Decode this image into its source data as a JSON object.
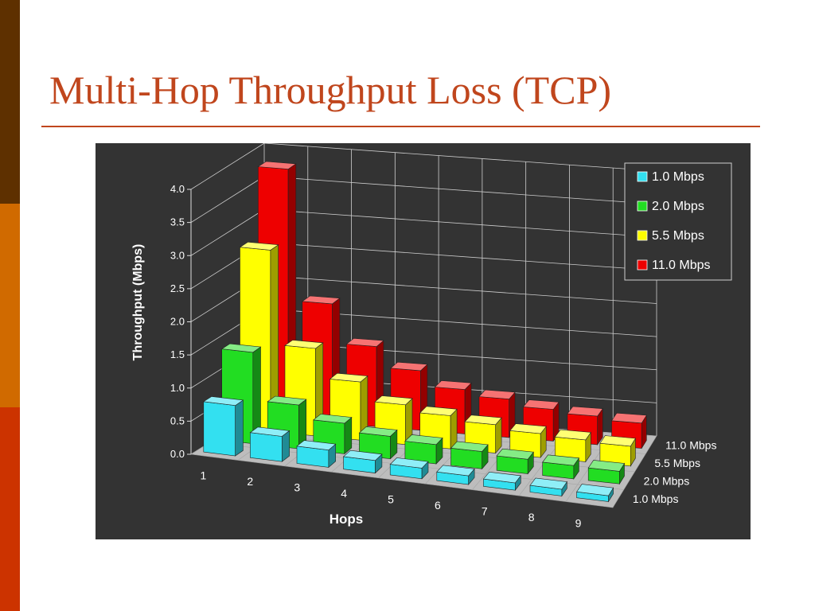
{
  "slide": {
    "title": "Multi-Hop Throughput Loss (TCP)",
    "accent_colors": [
      "#5e3000",
      "#d06a00",
      "#cc3300"
    ],
    "title_color": "#c0461d",
    "panel_background": "#333333"
  },
  "chart_data": {
    "type": "bar",
    "variant": "3d-grouped",
    "title": "",
    "xlabel": "Hops",
    "ylabel": "Throughput (Mbps)",
    "ylim": [
      0,
      4.0
    ],
    "yticks": [
      "0.0",
      "0.5",
      "1.0",
      "1.5",
      "2.0",
      "2.5",
      "3.0",
      "3.5",
      "4.0"
    ],
    "categories": [
      "1",
      "2",
      "3",
      "4",
      "5",
      "6",
      "7",
      "8",
      "9"
    ],
    "grid": true,
    "legend_position": "top-right",
    "series": [
      {
        "name": "1.0 Mbps",
        "color": "#33e0f0",
        "values": [
          0.76,
          0.38,
          0.26,
          0.19,
          0.16,
          0.13,
          0.11,
          0.1,
          0.09
        ]
      },
      {
        "name": "2.0 Mbps",
        "color": "#22dd22",
        "values": [
          1.38,
          0.66,
          0.46,
          0.34,
          0.29,
          0.26,
          0.22,
          0.2,
          0.19
        ]
      },
      {
        "name": "5.5 Mbps",
        "color": "#ffff00",
        "values": [
          2.74,
          1.32,
          0.88,
          0.6,
          0.5,
          0.43,
          0.36,
          0.33,
          0.3
        ]
      },
      {
        "name": "11.0 Mbps",
        "color": "#ee0000",
        "values": [
          3.78,
          1.8,
          1.21,
          0.9,
          0.67,
          0.58,
          0.48,
          0.43,
          0.38
        ]
      }
    ]
  }
}
